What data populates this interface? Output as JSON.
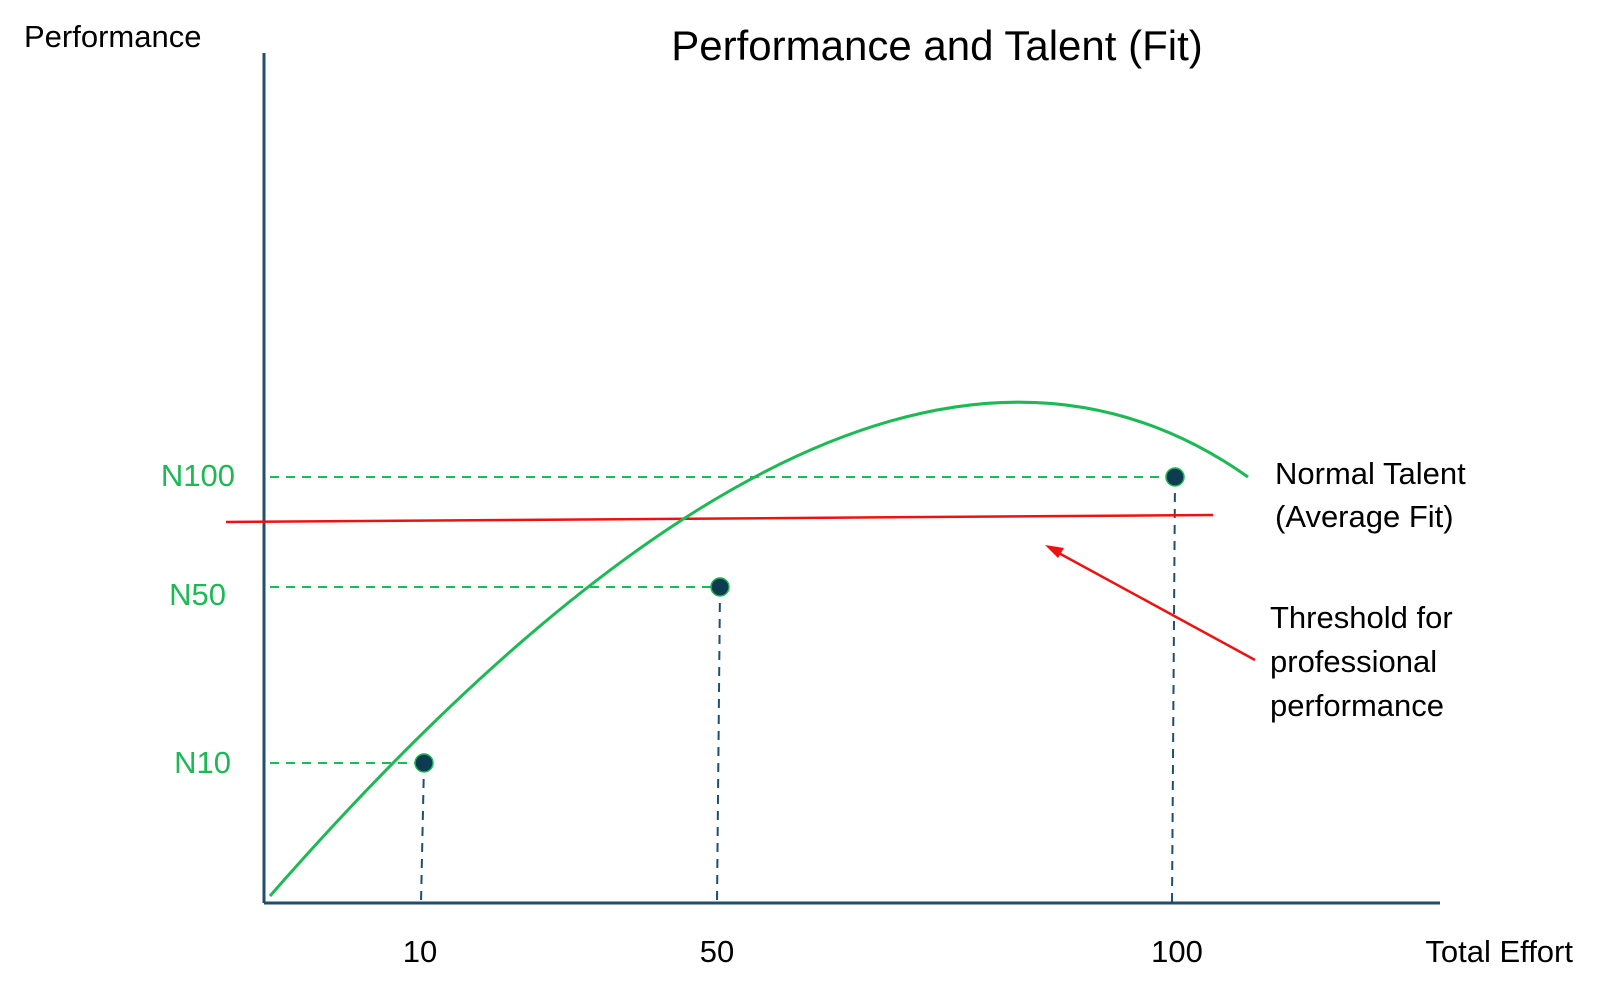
{
  "chart_data": {
    "type": "line",
    "title": "Performance and Talent (Fit)",
    "ylabel": "Performance",
    "xlabel": "Total Effort",
    "x_ticks": [
      "10",
      "50",
      "100"
    ],
    "y_ticks": [
      "N10",
      "N50",
      "N100"
    ],
    "series": [
      {
        "name": "Normal Talent (Average Fit)",
        "color": "#1DB954",
        "marked_points": [
          {
            "x": 10,
            "y": "N10"
          },
          {
            "x": 50,
            "y": "N50"
          },
          {
            "x": 100,
            "y": "N100"
          }
        ]
      }
    ],
    "threshold": {
      "label": "Threshold for professional performance",
      "color": "#EE1111"
    },
    "colors": {
      "axis": "#1F4E6E",
      "guide_y": "#1DB954",
      "guide_x": "#1F4E6E",
      "point": "#0E3B52",
      "text": "#000000"
    }
  }
}
